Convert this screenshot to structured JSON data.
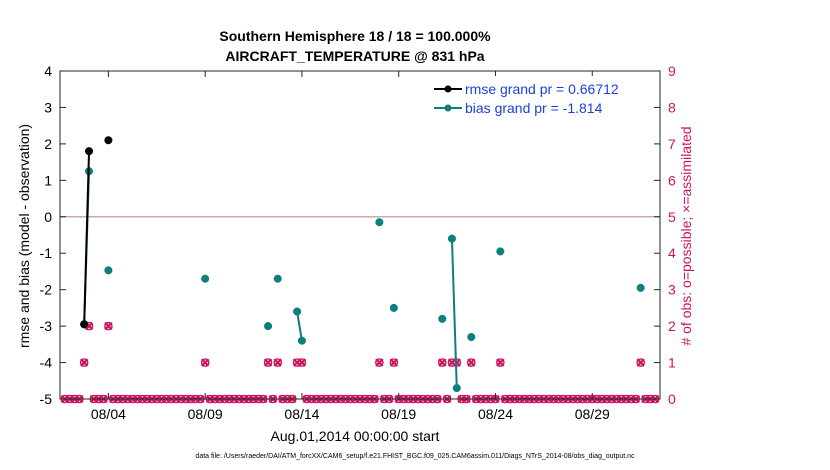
{
  "chart_data": {
    "type": "line",
    "title": "Southern Hemisphere 18 / 18 = 100.000%",
    "subtitle": "AIRCRAFT_TEMPERATURE @ 831 hPa",
    "xlabel": "Aug.01,2014 00:00:00 start",
    "ylabel": "rmse and bias (model - observation)",
    "y2label": "# of obs: o=possible; ×=assimilated",
    "xlim": [
      1.0,
      32.0
    ],
    "ylim": [
      -5,
      4
    ],
    "y2lim": [
      0,
      9
    ],
    "x_ticks": [
      3.5,
      8.5,
      13.5,
      18.5,
      23.5,
      28.5
    ],
    "x_tick_labels": [
      "08/04",
      "08/09",
      "08/14",
      "08/19",
      "08/24",
      "08/29"
    ],
    "y_ticks": [
      -5,
      -4,
      -3,
      -2,
      -1,
      0,
      1,
      2,
      3,
      4
    ],
    "y_tick_labels": [
      "-5",
      "-4",
      "-3",
      "-2",
      "-1",
      "0",
      "1",
      "2",
      "3",
      "4"
    ],
    "y2_ticks": [
      0,
      1,
      2,
      3,
      4,
      5,
      6,
      7,
      8,
      9
    ],
    "y2_tick_labels": [
      "0",
      "1",
      "2",
      "3",
      "4",
      "5",
      "6",
      "7",
      "8",
      "9"
    ],
    "zero_line": 0,
    "legend_position": "top-right",
    "series": [
      {
        "name": "rmse grand pr = 0.66712",
        "color": "#000000",
        "x": [
          2.25,
          2.5,
          3.5
        ],
        "y": [
          -2.95,
          1.8,
          2.1
        ],
        "segments": [
          [
            0,
            1
          ]
        ]
      },
      {
        "name": "bias grand pr = -1.814",
        "color": "#0e7e7e",
        "x": [
          2.25,
          2.5,
          3.5,
          8.5,
          11.75,
          12.25,
          13.25,
          13.5,
          17.5,
          18.25,
          20.75,
          21.25,
          21.5,
          22.25,
          23.75,
          31.0
        ],
        "y": [
          -2.95,
          1.25,
          -1.47,
          -1.7,
          -3.0,
          -1.7,
          -2.6,
          -3.4,
          -0.15,
          -2.5,
          -2.8,
          -0.6,
          -4.7,
          -3.3,
          -0.95,
          -1.95
        ],
        "segments": [
          [
            0,
            1
          ],
          [
            6,
            7
          ],
          [
            11,
            12
          ]
        ]
      },
      {
        "name": "possible",
        "color": "#cc1560",
        "marker": "circle",
        "axis": "right",
        "x": [
          2.25,
          2.5,
          3.5,
          8.5,
          11.75,
          12.25,
          13.25,
          13.5,
          17.5,
          18.25,
          20.75,
          21.25,
          21.5,
          22.25,
          23.75,
          31.0
        ],
        "y": [
          1,
          2,
          2,
          1,
          1,
          1,
          1,
          1,
          1,
          1,
          1,
          1,
          1,
          1,
          1,
          1
        ]
      },
      {
        "name": "assimilated",
        "color": "#cc1560",
        "marker": "x",
        "axis": "right",
        "x": [
          2.25,
          2.5,
          3.5,
          8.5,
          11.75,
          12.25,
          13.25,
          13.5,
          17.5,
          18.25,
          20.75,
          21.25,
          21.5,
          22.25,
          23.75,
          31.0
        ],
        "y": [
          1,
          2,
          2,
          1,
          1,
          1,
          1,
          1,
          1,
          1,
          1,
          1,
          1,
          1,
          1,
          1
        ]
      }
    ],
    "zero_count_x_start": 1.25,
    "zero_count_x_end": 31.75,
    "zero_count_x_step": 0.25
  },
  "footer": "data file: /Users/raeder/DAI/ATM_forcXX/CAM6_setup/f.e21.FHIST_BGC.f09_025.CAM6assim.011/Diags_NTrS_2014-08/obs_diag_output.nc"
}
